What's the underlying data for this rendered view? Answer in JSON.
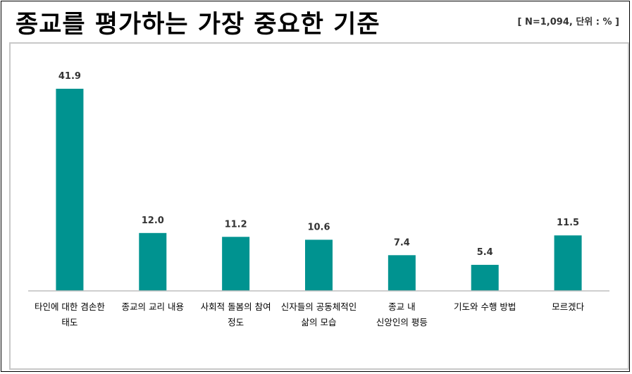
{
  "header": {
    "title": "종교를 평가하는 가장 중요한 기준",
    "meta": "[ N=1,094, 단위 : % ]"
  },
  "colors": {
    "bar": "#009390",
    "axis": "#bfbfbf"
  },
  "chart_data": {
    "type": "bar",
    "title": "종교를 평가하는 가장 중요한 기준",
    "note": "[ N=1,094, 단위 : % ]",
    "categories": [
      [
        "타인에 대한 겸손한",
        "태도"
      ],
      [
        "종교의 교리 내용"
      ],
      [
        "사회적 돌봄의 참여",
        "정도"
      ],
      [
        "신자들의 공동체적인",
        "삶의 모습"
      ],
      [
        "종교 내",
        "신앙인의 평등"
      ],
      [
        "기도와 수행 방법"
      ],
      [
        "모르겠다"
      ]
    ],
    "values": [
      41.9,
      12.0,
      11.2,
      10.6,
      7.4,
      5.4,
      11.5
    ],
    "value_labels": [
      "41.9",
      "12.0",
      "11.2",
      "10.6",
      "7.4",
      "5.4",
      "11.5"
    ],
    "ylim": [
      0,
      41.9
    ],
    "grid": false,
    "legend": "none"
  }
}
